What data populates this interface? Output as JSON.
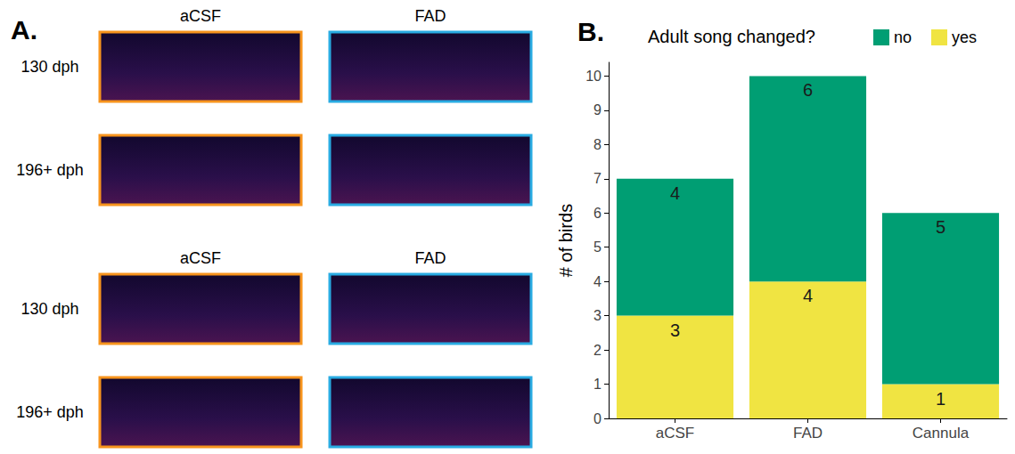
{
  "panel_a": {
    "label": "A.",
    "groups": [
      {
        "columns": [
          "aCSF",
          "FAD"
        ],
        "rows": [
          "130 dph",
          "196+ dph"
        ]
      },
      {
        "columns": [
          "aCSF",
          "FAD"
        ],
        "rows": [
          "130 dph",
          "196+ dph"
        ]
      }
    ],
    "column_colors": [
      "#F7941D",
      "#29ABE2"
    ]
  },
  "chart_data": {
    "panel_label": "B.",
    "type": "bar",
    "stacked": true,
    "legend_title": "Adult song changed?",
    "legend": "top",
    "categories": [
      "aCSF",
      "FAD",
      "Cannula"
    ],
    "series": [
      {
        "name": "no",
        "color": "#009E73",
        "values": [
          4,
          6,
          5
        ]
      },
      {
        "name": "yes",
        "color": "#F0E442",
        "values": [
          3,
          4,
          1
        ]
      }
    ],
    "ylabel": "# of birds",
    "ylim": [
      0,
      10.4
    ],
    "yticks": [
      0,
      1,
      2,
      3,
      4,
      5,
      6,
      7,
      8,
      9,
      10
    ],
    "grid": false,
    "data_labels": true
  }
}
